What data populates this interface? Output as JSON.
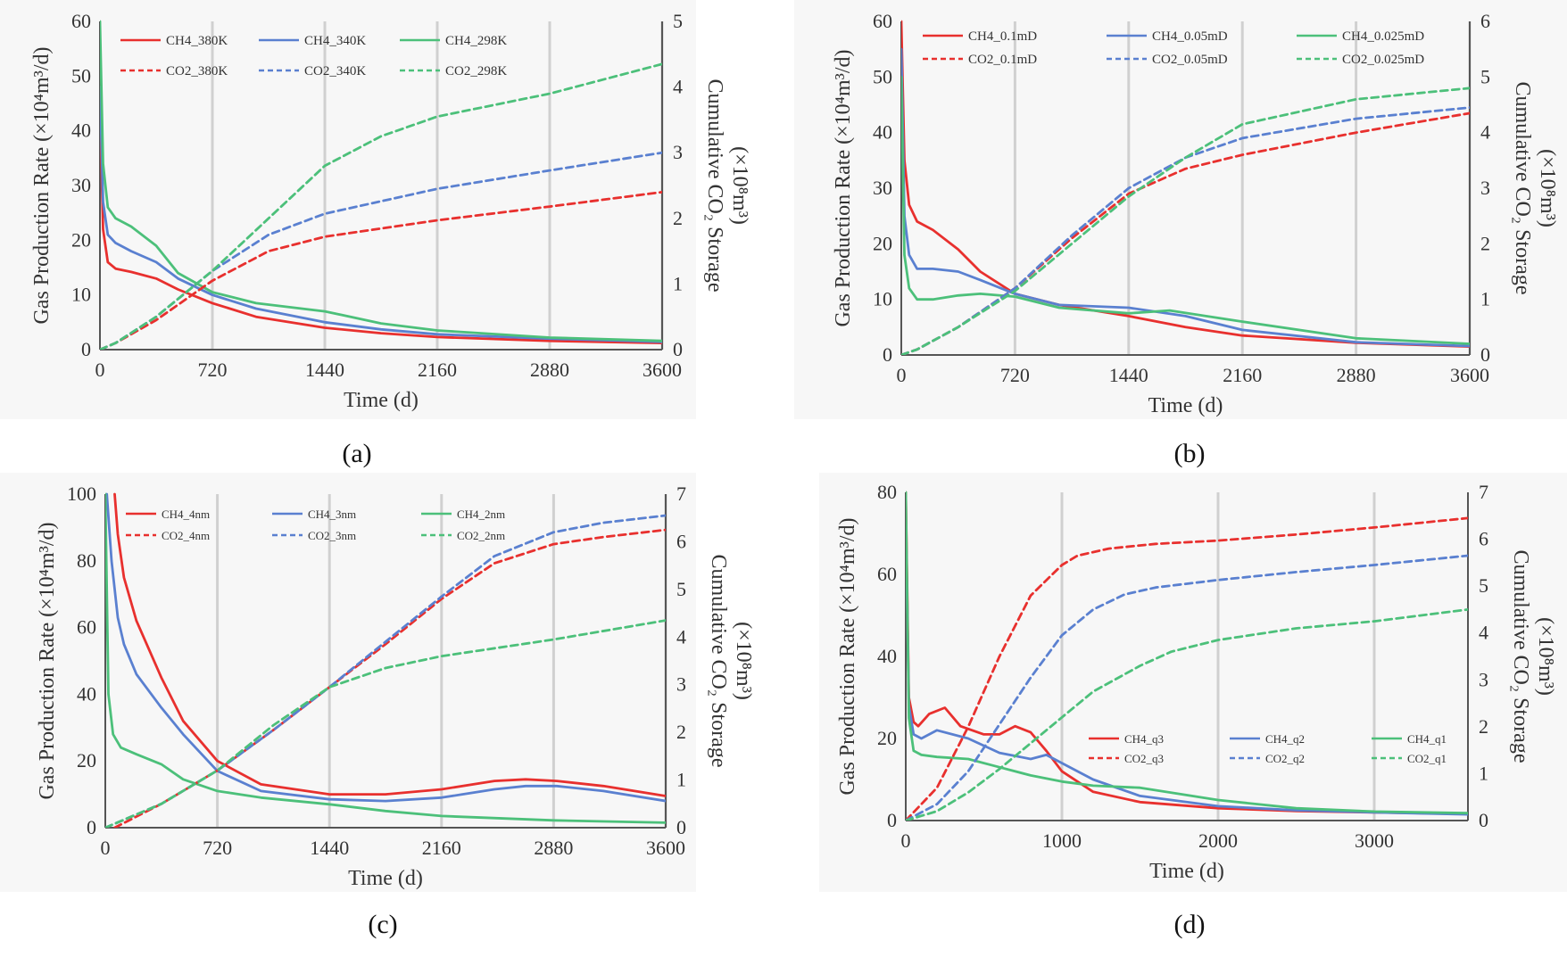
{
  "figure": {
    "colors": {
      "red": "#e8302e",
      "blue": "#5a80d0",
      "green": "#4cc07a",
      "grid": "#d0d0d0",
      "axis": "#555555"
    }
  },
  "chart_data": [
    {
      "panel_label": "(a)",
      "type": "line",
      "xlabel": "Time (d)",
      "ylabel": "Gas Production Rate (×10⁴m³/d)",
      "y2label_line1": "Cumulative CO₂ Storage",
      "y2label_line2": "(×10⁸m³)",
      "xlim": [
        0,
        3600
      ],
      "ylim": [
        0,
        60
      ],
      "y2lim": [
        0,
        5
      ],
      "xticks": [
        0,
        720,
        1440,
        2160,
        2880,
        3600
      ],
      "yticks": [
        0,
        10,
        20,
        30,
        40,
        50,
        60
      ],
      "y2ticks": [
        0,
        1,
        2,
        3,
        4,
        5
      ],
      "legend_position": "top",
      "series": [
        {
          "name": "CH4_380K",
          "axis": "left",
          "style": "solid",
          "color": "#e8302e",
          "x": [
            0,
            20,
            50,
            100,
            200,
            360,
            500,
            720,
            1000,
            1440,
            1800,
            2160,
            2880,
            3600
          ],
          "y": [
            45,
            22,
            16,
            14.8,
            14.2,
            13,
            11,
            8.5,
            6,
            4,
            3,
            2.3,
            1.6,
            1.2
          ]
        },
        {
          "name": "CH4_340K",
          "axis": "left",
          "style": "solid",
          "color": "#5a80d0",
          "x": [
            0,
            20,
            50,
            100,
            200,
            360,
            500,
            720,
            1000,
            1440,
            1800,
            2160,
            2880,
            3600
          ],
          "y": [
            48,
            27,
            21,
            19.5,
            18,
            16,
            13,
            10,
            7.5,
            5,
            3.7,
            2.8,
            2,
            1.4
          ]
        },
        {
          "name": "CH4_298K",
          "axis": "left",
          "style": "solid",
          "color": "#4cc07a",
          "x": [
            0,
            20,
            50,
            100,
            200,
            360,
            500,
            720,
            1000,
            1440,
            1800,
            2160,
            2880,
            3600
          ],
          "y": [
            60,
            34,
            26,
            24,
            22.5,
            19,
            14,
            10.5,
            8.5,
            7,
            4.8,
            3.5,
            2.2,
            1.6
          ]
        },
        {
          "name": "CO2_380K",
          "axis": "right",
          "style": "dashed",
          "color": "#e8302e",
          "x": [
            0,
            100,
            360,
            720,
            1080,
            1440,
            2160,
            2880,
            3600
          ],
          "y": [
            0,
            0.1,
            0.45,
            1.05,
            1.5,
            1.72,
            1.97,
            2.18,
            2.4
          ]
        },
        {
          "name": "CO2_340K",
          "axis": "right",
          "style": "dashed",
          "color": "#5a80d0",
          "x": [
            0,
            100,
            360,
            720,
            1080,
            1440,
            2160,
            2880,
            3600
          ],
          "y": [
            0,
            0.1,
            0.5,
            1.2,
            1.75,
            2.07,
            2.45,
            2.73,
            3.0
          ]
        },
        {
          "name": "CO2_298K",
          "axis": "right",
          "style": "dashed",
          "color": "#4cc07a",
          "x": [
            0,
            100,
            360,
            720,
            1080,
            1440,
            1800,
            2160,
            2880,
            3600
          ],
          "y": [
            0,
            0.1,
            0.5,
            1.2,
            2.0,
            2.8,
            3.25,
            3.55,
            3.9,
            4.35
          ]
        }
      ]
    },
    {
      "panel_label": "(b)",
      "type": "line",
      "xlabel": "Time (d)",
      "ylabel": "Gas Production Rate (×10⁴m³/d)",
      "y2label_line1": "Cumulative CO₂ Storage",
      "y2label_line2": "(×10⁸m³)",
      "xlim": [
        0,
        3600
      ],
      "ylim": [
        0,
        60
      ],
      "y2lim": [
        0,
        6
      ],
      "xticks": [
        0,
        720,
        1440,
        2160,
        2880,
        3600
      ],
      "yticks": [
        0,
        10,
        20,
        30,
        40,
        50,
        60
      ],
      "y2ticks": [
        0,
        1,
        2,
        3,
        4,
        5,
        6
      ],
      "legend_position": "top",
      "series": [
        {
          "name": "CH4_0.1mD",
          "axis": "left",
          "style": "solid",
          "color": "#e8302e",
          "x": [
            0,
            20,
            50,
            100,
            200,
            360,
            500,
            720,
            1000,
            1440,
            1800,
            2160,
            2880,
            3600
          ],
          "y": [
            60,
            35,
            27,
            24,
            22.5,
            19,
            15,
            11,
            9,
            7,
            5,
            3.5,
            2.2,
            1.5
          ]
        },
        {
          "name": "CH4_0.05mD",
          "axis": "left",
          "style": "solid",
          "color": "#5a80d0",
          "x": [
            0,
            20,
            50,
            100,
            200,
            360,
            500,
            720,
            1000,
            1440,
            1800,
            2160,
            2880,
            3600
          ],
          "y": [
            55,
            25,
            18,
            15.5,
            15.5,
            15,
            13.5,
            11,
            9,
            8.5,
            7,
            4.5,
            2.3,
            1.6
          ]
        },
        {
          "name": "CH4_0.025mD",
          "axis": "left",
          "style": "solid",
          "color": "#4cc07a",
          "x": [
            0,
            20,
            50,
            100,
            200,
            360,
            500,
            720,
            1000,
            1440,
            1700,
            2160,
            2880,
            3600
          ],
          "y": [
            50,
            18,
            12,
            10,
            10,
            10.7,
            11,
            10.5,
            8.5,
            7.5,
            8,
            6,
            3,
            2
          ]
        },
        {
          "name": "CO2_0.1mD",
          "axis": "right",
          "style": "dashed",
          "color": "#e8302e",
          "x": [
            0,
            100,
            360,
            720,
            1080,
            1440,
            1800,
            2160,
            2880,
            3600
          ],
          "y": [
            0,
            0.1,
            0.5,
            1.2,
            2.1,
            2.9,
            3.35,
            3.6,
            4.0,
            4.35
          ]
        },
        {
          "name": "CO2_0.05mD",
          "axis": "right",
          "style": "dashed",
          "color": "#5a80d0",
          "x": [
            0,
            100,
            360,
            720,
            1080,
            1440,
            1800,
            2160,
            2880,
            3600
          ],
          "y": [
            0,
            0.1,
            0.5,
            1.2,
            2.15,
            3.0,
            3.55,
            3.9,
            4.25,
            4.45
          ]
        },
        {
          "name": "CO2_0.025mD",
          "axis": "right",
          "style": "dashed",
          "color": "#4cc07a",
          "x": [
            0,
            100,
            360,
            720,
            1080,
            1440,
            1800,
            2160,
            2880,
            3600
          ],
          "y": [
            0,
            0.1,
            0.5,
            1.15,
            2.0,
            2.85,
            3.55,
            4.15,
            4.6,
            4.8
          ]
        }
      ]
    },
    {
      "panel_label": "(c)",
      "type": "line",
      "xlabel": "Time (d)",
      "ylabel": "Gas Production Rate (×10⁴m³/d)",
      "y2label_line1": "Cumulative CO₂ Storage",
      "y2label_line2": "(×10⁸m³)",
      "xlim": [
        0,
        3600
      ],
      "ylim": [
        0,
        100
      ],
      "y2lim": [
        0,
        7
      ],
      "xticks": [
        0,
        720,
        1440,
        2160,
        2880,
        3600
      ],
      "yticks": [
        0,
        20,
        40,
        60,
        80,
        100
      ],
      "y2ticks": [
        0,
        1,
        2,
        3,
        4,
        5,
        6,
        7
      ],
      "legend_position": "top",
      "series": [
        {
          "name": "CH4_4nm",
          "axis": "left",
          "style": "solid",
          "color": "#e8302e",
          "x": [
            60,
            80,
            120,
            200,
            360,
            500,
            720,
            1000,
            1440,
            1800,
            2160,
            2500,
            2700,
            2900,
            3200,
            3600
          ],
          "y": [
            100,
            88,
            75,
            62,
            45,
            32,
            20,
            13,
            10,
            10,
            11.5,
            14,
            14.5,
            14,
            12.5,
            9.5
          ]
        },
        {
          "name": "CH4_3nm",
          "axis": "left",
          "style": "solid",
          "color": "#5a80d0",
          "x": [
            10,
            40,
            80,
            120,
            200,
            360,
            500,
            720,
            1000,
            1440,
            1800,
            2160,
            2500,
            2700,
            2900,
            3200,
            3600
          ],
          "y": [
            100,
            80,
            63,
            55,
            46,
            36,
            28,
            17,
            11,
            8.5,
            8,
            9,
            11.5,
            12.5,
            12.5,
            11,
            8
          ]
        },
        {
          "name": "CH4_2nm",
          "axis": "left",
          "style": "solid",
          "color": "#4cc07a",
          "x": [
            0,
            20,
            50,
            100,
            200,
            360,
            500,
            720,
            1000,
            1440,
            1800,
            2160,
            2880,
            3600
          ],
          "y": [
            100,
            40,
            28,
            24,
            22,
            19,
            14.5,
            11,
            9,
            7,
            5,
            3.5,
            2.2,
            1.5
          ]
        },
        {
          "name": "CO2_4nm",
          "axis": "right",
          "style": "dashed",
          "color": "#e8302e",
          "x": [
            60,
            360,
            720,
            1080,
            1440,
            1800,
            2160,
            2500,
            2880,
            3200,
            3600
          ],
          "y": [
            0,
            0.5,
            1.2,
            2.05,
            2.95,
            3.85,
            4.8,
            5.55,
            5.95,
            6.1,
            6.25
          ]
        },
        {
          "name": "CO2_3nm",
          "axis": "right",
          "style": "dashed",
          "color": "#5a80d0",
          "x": [
            0,
            360,
            720,
            1080,
            1440,
            1800,
            2160,
            2500,
            2880,
            3200,
            3600
          ],
          "y": [
            0,
            0.5,
            1.2,
            2.05,
            2.95,
            3.9,
            4.85,
            5.7,
            6.2,
            6.4,
            6.55
          ]
        },
        {
          "name": "CO2_2nm",
          "axis": "right",
          "style": "dashed",
          "color": "#4cc07a",
          "x": [
            0,
            360,
            720,
            1080,
            1440,
            1800,
            2160,
            2880,
            3600
          ],
          "y": [
            0,
            0.5,
            1.2,
            2.15,
            2.95,
            3.35,
            3.6,
            3.95,
            4.35
          ]
        }
      ]
    },
    {
      "panel_label": "(d)",
      "type": "line",
      "xlabel": "Time (d)",
      "ylabel": "Gas Production Rate (×10⁴m³/d)",
      "y2label_line1": "Cumulative CO₂ Storage",
      "y2label_line2": "(×10⁸m³)",
      "xlim": [
        0,
        3600
      ],
      "ylim": [
        0,
        80
      ],
      "y2lim": [
        0,
        7
      ],
      "xticks": [
        0,
        1000,
        2000,
        3000
      ],
      "yticks": [
        0,
        20,
        40,
        60,
        80
      ],
      "y2ticks": [
        0,
        1,
        2,
        3,
        4,
        5,
        6,
        7
      ],
      "legend_position": "center-right",
      "series": [
        {
          "name": "CH4_q3",
          "axis": "left",
          "style": "solid",
          "color": "#e8302e",
          "x": [
            0,
            20,
            50,
            80,
            150,
            250,
            350,
            500,
            600,
            700,
            800,
            900,
            1000,
            1200,
            1500,
            2000,
            2500,
            3000,
            3600
          ],
          "y": [
            80,
            30,
            24,
            23,
            26,
            27.5,
            23,
            21,
            21,
            23,
            21.5,
            17,
            12,
            7,
            4.5,
            3,
            2.3,
            2,
            1.6
          ]
        },
        {
          "name": "CH4_q2",
          "axis": "left",
          "style": "solid",
          "color": "#5a80d0",
          "x": [
            0,
            20,
            50,
            100,
            200,
            400,
            600,
            800,
            900,
            1000,
            1200,
            1500,
            2000,
            2500,
            3000,
            3600
          ],
          "y": [
            75,
            28,
            21,
            20,
            22,
            20,
            16.5,
            15,
            16,
            14,
            10,
            6,
            3.5,
            2.5,
            2,
            1.5
          ]
        },
        {
          "name": "CH4_q1",
          "axis": "left",
          "style": "solid",
          "color": "#4cc07a",
          "x": [
            0,
            20,
            50,
            100,
            200,
            400,
            600,
            800,
            1000,
            1200,
            1500,
            2000,
            2500,
            3000,
            3600
          ],
          "y": [
            80,
            25,
            17,
            16,
            15.5,
            15,
            13,
            11,
            9.5,
            8.5,
            8,
            5,
            3,
            2.2,
            1.8
          ]
        },
        {
          "name": "CO2_q3",
          "axis": "right",
          "style": "dashed",
          "color": "#e8302e",
          "x": [
            0,
            200,
            400,
            600,
            800,
            1000,
            1100,
            1300,
            1600,
            2000,
            2500,
            3000,
            3600
          ],
          "y": [
            0,
            0.7,
            2.0,
            3.5,
            4.8,
            5.45,
            5.65,
            5.8,
            5.9,
            5.97,
            6.1,
            6.25,
            6.45
          ]
        },
        {
          "name": "CO2_q2",
          "axis": "right",
          "style": "dashed",
          "color": "#5a80d0",
          "x": [
            0,
            200,
            400,
            600,
            800,
            1000,
            1200,
            1400,
            1600,
            2000,
            2500,
            3000,
            3600
          ],
          "y": [
            0,
            0.35,
            1.05,
            2.05,
            3.05,
            3.95,
            4.5,
            4.82,
            4.97,
            5.13,
            5.3,
            5.45,
            5.65
          ]
        },
        {
          "name": "CO2_q1",
          "axis": "right",
          "style": "dashed",
          "color": "#4cc07a",
          "x": [
            0,
            200,
            400,
            600,
            800,
            1000,
            1200,
            1500,
            1700,
            2000,
            2500,
            3000,
            3600
          ],
          "y": [
            0,
            0.2,
            0.6,
            1.1,
            1.65,
            2.2,
            2.75,
            3.3,
            3.6,
            3.85,
            4.1,
            4.25,
            4.5
          ]
        }
      ]
    }
  ]
}
